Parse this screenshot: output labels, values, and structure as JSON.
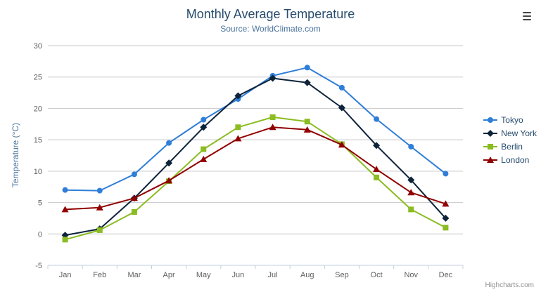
{
  "chart_data": {
    "type": "line",
    "title": "Monthly Average Temperature",
    "subtitle": "Source: WorldClimate.com",
    "xlabel": "",
    "ylabel": "Temperature (°C)",
    "categories": [
      "Jan",
      "Feb",
      "Mar",
      "Apr",
      "May",
      "Jun",
      "Jul",
      "Aug",
      "Sep",
      "Oct",
      "Nov",
      "Dec"
    ],
    "ylim": [
      -5,
      30
    ],
    "ytick_step": 5,
    "grid": true,
    "legend_position": "right",
    "series": [
      {
        "name": "Tokyo",
        "color": "#2f7ed8",
        "marker": "circle",
        "values": [
          7.0,
          6.9,
          9.5,
          14.5,
          18.2,
          21.5,
          25.2,
          26.5,
          23.3,
          18.3,
          13.9,
          9.6
        ]
      },
      {
        "name": "New York",
        "color": "#0d233a",
        "marker": "diamond",
        "values": [
          -0.2,
          0.8,
          5.7,
          11.3,
          17.0,
          22.0,
          24.8,
          24.1,
          20.1,
          14.1,
          8.6,
          2.5
        ]
      },
      {
        "name": "Berlin",
        "color": "#8bbc21",
        "marker": "square",
        "values": [
          -0.9,
          0.6,
          3.5,
          8.4,
          13.5,
          17.0,
          18.6,
          17.9,
          14.3,
          9.0,
          3.9,
          1.0
        ]
      },
      {
        "name": "London",
        "color": "#910000",
        "marker": "triangle",
        "values": [
          3.9,
          4.2,
          5.7,
          8.5,
          11.9,
          15.2,
          17.0,
          16.6,
          14.2,
          10.3,
          6.6,
          4.8
        ]
      }
    ],
    "colors": {
      "title": "#274b6d",
      "subtitle": "#4d759e",
      "axis_labels": "#606060",
      "grid_line": "#c8c8c8",
      "axis_line": "#c0d0e0"
    }
  },
  "credits": "Highcharts.com",
  "export_menu": {
    "icon": "hamburger-menu-icon"
  }
}
